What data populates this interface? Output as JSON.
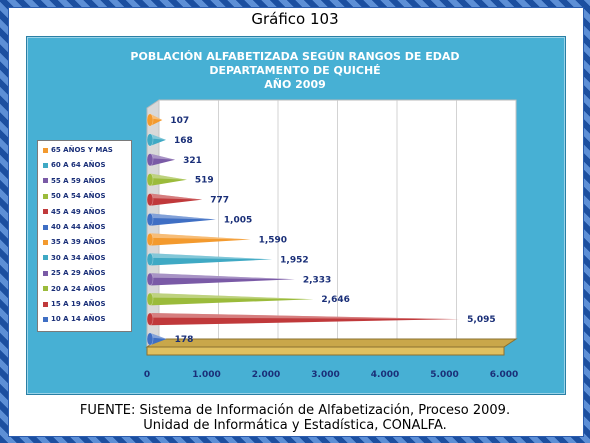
{
  "header": {
    "title": "Gráfico 103"
  },
  "footer": {
    "line1": "FUENTE: Sistema de Información de Alfabetización, Proceso 2009.",
    "line2": "Unidad de Informática y Estadística, CONALFA."
  },
  "chart_data": {
    "type": "bar",
    "title": "POBLACIÓN ALFABETIZADA SEGÚN RANGOS DE EDAD",
    "subtitle": "DEPARTAMENTO DE QUICHÉ",
    "subtitle2": "AÑO 2009",
    "orientation": "horizontal",
    "xlim": [
      0,
      6000
    ],
    "x_ticks": [
      "0",
      "1.000",
      "2.000",
      "3.000",
      "4.000",
      "5.000",
      "6.000"
    ],
    "categories": [
      "10 A 14 AÑOS",
      "15 A 19 AÑOS",
      "20 A 24 AÑOS",
      "25 A 29 AÑOS",
      "30 A 34 AÑOS",
      "35 A 39 AÑOS",
      "40 A 44 AÑOS",
      "45 A 49 AÑOS",
      "50 A 54 AÑOS",
      "55 A 59 AÑOS",
      "60 A 64 AÑOS",
      "65 AÑOS Y MAS"
    ],
    "values": [
      178,
      5095,
      2646,
      2333,
      1952,
      1590,
      1005,
      777,
      519,
      321,
      168,
      107
    ],
    "data_labels": [
      "178",
      "5,095",
      "2,646",
      "2,333",
      "1,952",
      "1,590",
      "1,005",
      "777",
      "519",
      "321",
      "168",
      "107"
    ],
    "colors": [
      "#3f6fc4",
      "#c0393b",
      "#9bbb3b",
      "#7a5aa6",
      "#3fa9c4",
      "#f39a2e",
      "#3f6fc4",
      "#c0393b",
      "#9bbb3b",
      "#7a5aa6",
      "#3fa9c4",
      "#f39a2e"
    ],
    "legend_order": [
      "65 AÑOS Y MAS",
      "60 A 64 AÑOS",
      "55 A 59 AÑOS",
      "50 A 54 AÑOS",
      "45 A 49 AÑOS",
      "40 A 44 AÑOS",
      "35 A 39 AÑOS",
      "30 A 34 AÑOS",
      "25 A 29 AÑOS",
      "20 A 24 AÑOS",
      "15 A 19 AÑOS",
      "10 A 14 AÑOS"
    ],
    "legend_position": "left",
    "grid": true
  }
}
